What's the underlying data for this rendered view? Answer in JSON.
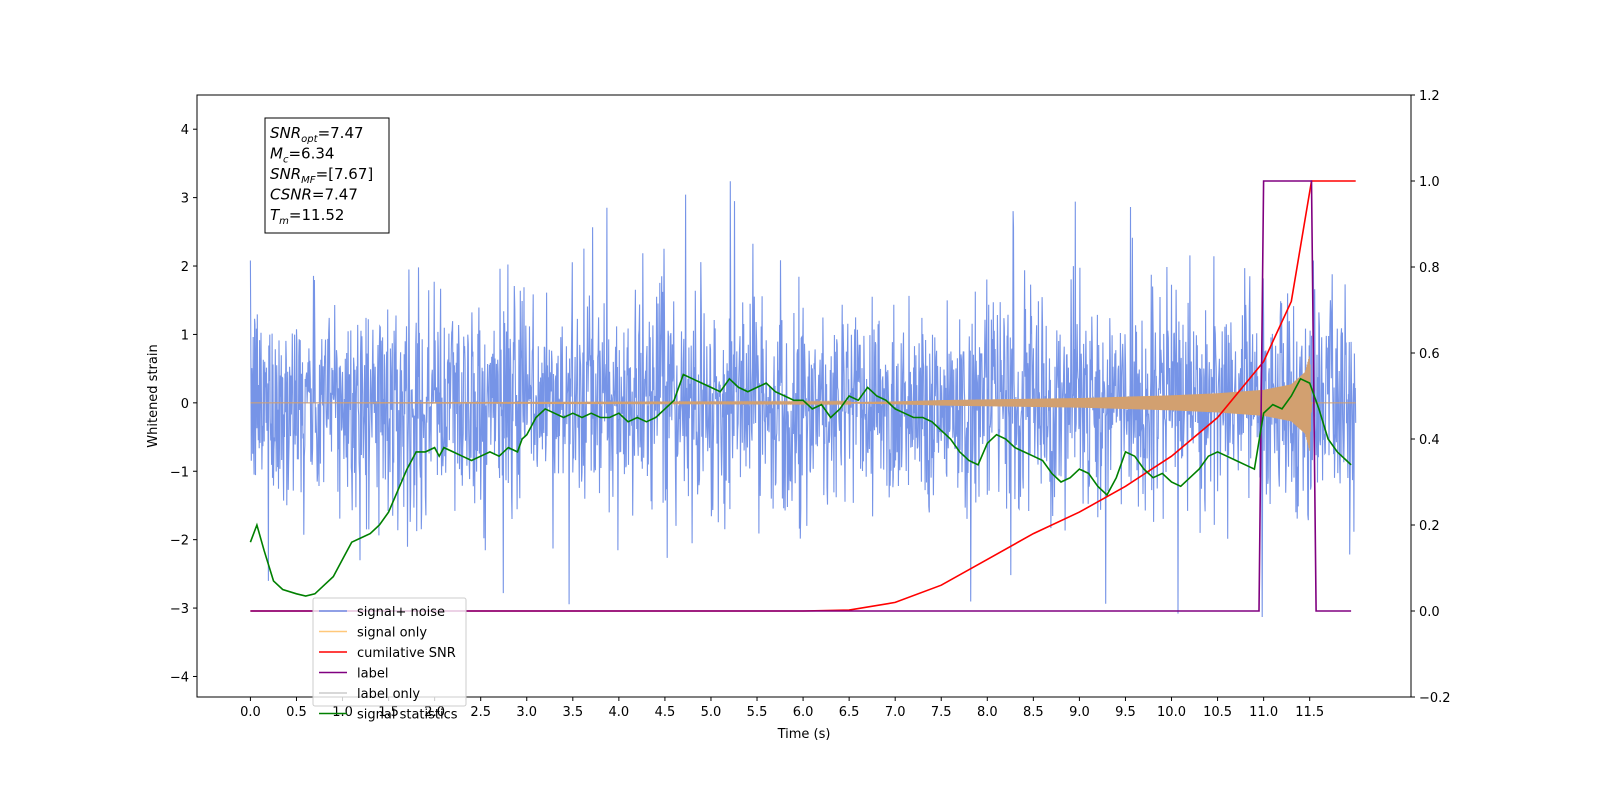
{
  "chart_data": {
    "type": "line",
    "xlabel": "Time (s)",
    "ylabel": "Whitened strain",
    "xlim": [
      -0.58,
      12.6
    ],
    "ylim": [
      -4.3,
      4.5
    ],
    "y2lim": [
      -0.2,
      1.2
    ],
    "x_ticks": [
      "0.0",
      "0.5",
      "1.0",
      "1.5",
      "2.0",
      "2.5",
      "3.0",
      "3.5",
      "4.0",
      "4.5",
      "5.0",
      "5.5",
      "6.0",
      "6.5",
      "7.0",
      "7.5",
      "8.0",
      "8.5",
      "9.0",
      "9.5",
      "10.0",
      "10.5",
      "11.0",
      "11.5"
    ],
    "y_ticks": [
      "4",
      "3",
      "2",
      "1",
      "0",
      "−1",
      "−2",
      "−3",
      "−4"
    ],
    "y2_ticks": [
      "1.2",
      "1.0",
      "0.8",
      "0.6",
      "0.4",
      "0.2",
      "0.0",
      "−0.2"
    ],
    "stats_box": {
      "lines": [
        {
          "symbol": "SNR",
          "sub": "opt",
          "value": "=7.47"
        },
        {
          "symbol": "M",
          "sub": "c",
          "value": "=6.34"
        },
        {
          "symbol": "SNR",
          "sub": "MF",
          "value": "=[7.67]"
        },
        {
          "symbol": "CSNR",
          "sub": "",
          "value": "=7.47"
        },
        {
          "symbol": "T",
          "sub": "m",
          "value": "=11.52"
        }
      ]
    },
    "legend": {
      "placement": "lower-left",
      "entries": [
        {
          "label": "signal+ noise",
          "color": "#6f8ee6"
        },
        {
          "label": "signal only",
          "color": "#ffc87a"
        },
        {
          "label": "cumilative SNR",
          "color": "#ff0000"
        },
        {
          "label": "label",
          "color": "#800080"
        },
        {
          "label": "label only",
          "color": "#cccccc"
        },
        {
          "label": "signal statistics",
          "color": "#008000"
        }
      ]
    },
    "series": [
      {
        "name": "signal+ noise",
        "axis": "left",
        "color": "#6f8ee6",
        "style": "dense noise, amplitude roughly ±2 with spikes to about ±4",
        "x_range": [
          0.0,
          12.0
        ]
      },
      {
        "name": "signal only",
        "axis": "left",
        "color": "#d2a070",
        "style": "chirp: ~0 until 6.5 s, envelope growing to about ±0.7 at 11.5 s, then 0",
        "envelope_x": [
          0.0,
          6.5,
          7.0,
          7.5,
          8.0,
          8.5,
          9.0,
          9.5,
          10.0,
          10.5,
          11.0,
          11.3,
          11.45,
          11.5,
          11.52,
          12.0
        ],
        "envelope_y": [
          0.0,
          0.01,
          0.02,
          0.04,
          0.05,
          0.06,
          0.07,
          0.09,
          0.11,
          0.14,
          0.19,
          0.27,
          0.45,
          0.7,
          0.0,
          0.0
        ]
      },
      {
        "name": "cumilative SNR",
        "axis": "right",
        "color": "#ff0000",
        "x": [
          0.0,
          6.0,
          6.5,
          7.0,
          7.5,
          8.0,
          8.5,
          9.0,
          9.5,
          10.0,
          10.5,
          11.0,
          11.3,
          11.52,
          11.6,
          12.0
        ],
        "y": [
          0.0,
          0.0,
          0.002,
          0.02,
          0.06,
          0.12,
          0.18,
          0.23,
          0.29,
          0.36,
          0.45,
          0.58,
          0.72,
          1.0,
          1.0,
          1.0
        ]
      },
      {
        "name": "label",
        "axis": "right",
        "color": "#800080",
        "x": [
          0.0,
          10.95,
          11.0,
          11.52,
          11.57,
          11.95
        ],
        "y": [
          0.0,
          0.0,
          1.0,
          1.0,
          0.0,
          0.0
        ]
      },
      {
        "name": "signal statistics",
        "axis": "right",
        "color": "#008000",
        "x": [
          0.0,
          0.07,
          0.15,
          0.25,
          0.35,
          0.5,
          0.6,
          0.7,
          0.8,
          0.9,
          1.0,
          1.1,
          1.2,
          1.3,
          1.4,
          1.5,
          1.6,
          1.7,
          1.8,
          1.9,
          2.0,
          2.05,
          2.1,
          2.2,
          2.3,
          2.4,
          2.5,
          2.6,
          2.7,
          2.8,
          2.9,
          2.95,
          3.0,
          3.1,
          3.2,
          3.3,
          3.4,
          3.5,
          3.6,
          3.7,
          3.8,
          3.9,
          4.0,
          4.1,
          4.2,
          4.3,
          4.4,
          4.5,
          4.6,
          4.7,
          4.8,
          4.9,
          5.0,
          5.1,
          5.2,
          5.3,
          5.4,
          5.5,
          5.6,
          5.7,
          5.8,
          5.9,
          6.0,
          6.1,
          6.2,
          6.3,
          6.4,
          6.5,
          6.6,
          6.7,
          6.8,
          6.9,
          7.0,
          7.1,
          7.2,
          7.3,
          7.4,
          7.5,
          7.6,
          7.7,
          7.8,
          7.9,
          8.0,
          8.1,
          8.2,
          8.3,
          8.4,
          8.5,
          8.6,
          8.7,
          8.8,
          8.9,
          9.0,
          9.1,
          9.2,
          9.3,
          9.4,
          9.5,
          9.6,
          9.7,
          9.8,
          9.9,
          10.0,
          10.1,
          10.2,
          10.3,
          10.4,
          10.5,
          10.6,
          10.7,
          10.8,
          10.9,
          11.0,
          11.1,
          11.2,
          11.3,
          11.4,
          11.5,
          11.6,
          11.7,
          11.8,
          11.9,
          11.95
        ],
        "y": [
          0.16,
          0.2,
          0.14,
          0.07,
          0.05,
          0.04,
          0.035,
          0.04,
          0.06,
          0.08,
          0.12,
          0.16,
          0.17,
          0.18,
          0.2,
          0.23,
          0.28,
          0.33,
          0.37,
          0.37,
          0.38,
          0.36,
          0.38,
          0.37,
          0.36,
          0.35,
          0.36,
          0.37,
          0.36,
          0.38,
          0.37,
          0.4,
          0.41,
          0.45,
          0.47,
          0.46,
          0.45,
          0.46,
          0.45,
          0.46,
          0.45,
          0.45,
          0.46,
          0.44,
          0.45,
          0.44,
          0.45,
          0.47,
          0.49,
          0.55,
          0.54,
          0.53,
          0.52,
          0.51,
          0.54,
          0.52,
          0.51,
          0.52,
          0.53,
          0.51,
          0.5,
          0.49,
          0.49,
          0.47,
          0.48,
          0.45,
          0.47,
          0.5,
          0.49,
          0.52,
          0.5,
          0.49,
          0.47,
          0.46,
          0.45,
          0.45,
          0.44,
          0.42,
          0.4,
          0.37,
          0.35,
          0.34,
          0.39,
          0.41,
          0.4,
          0.38,
          0.37,
          0.36,
          0.35,
          0.32,
          0.3,
          0.31,
          0.33,
          0.32,
          0.29,
          0.27,
          0.31,
          0.37,
          0.36,
          0.33,
          0.31,
          0.32,
          0.3,
          0.29,
          0.31,
          0.33,
          0.36,
          0.37,
          0.36,
          0.35,
          0.34,
          0.33,
          0.46,
          0.48,
          0.47,
          0.5,
          0.54,
          0.53,
          0.47,
          0.4,
          0.37,
          0.35,
          0.34
        ]
      }
    ]
  }
}
